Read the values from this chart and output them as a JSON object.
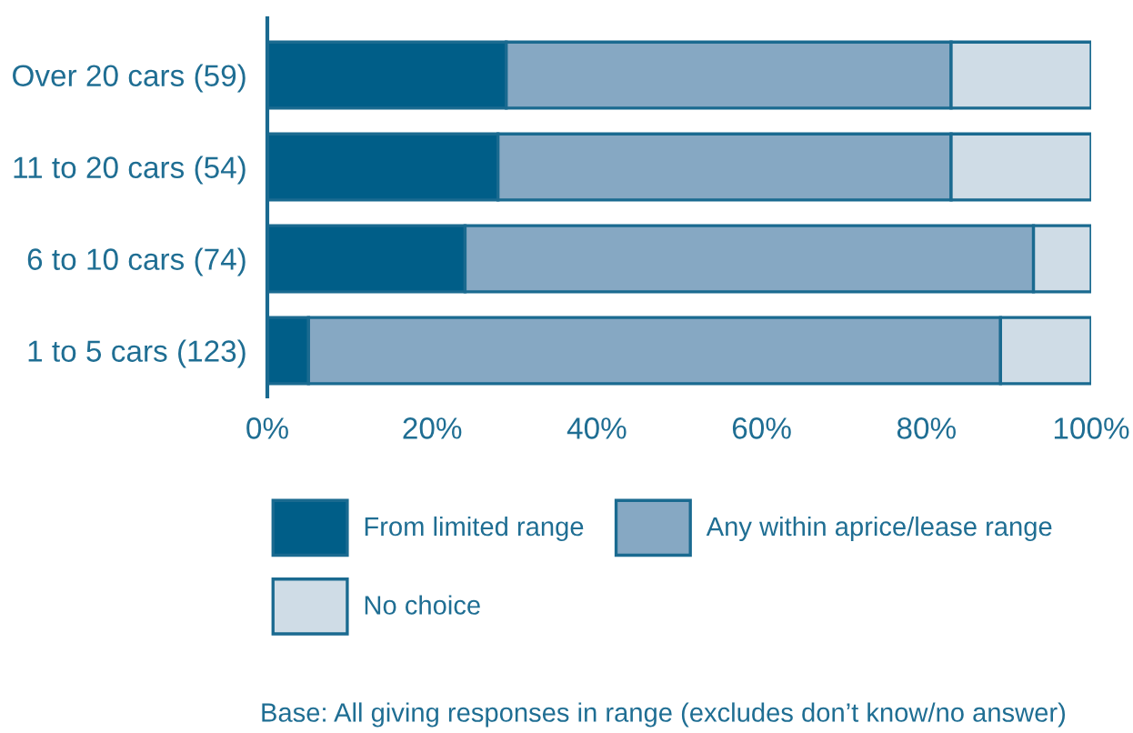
{
  "chart_data": {
    "type": "bar",
    "orientation": "horizontal",
    "stacked": true,
    "categories": [
      "Over 20 cars (59)",
      "11 to 20 cars (54)",
      "6 to 10 cars (74)",
      "1 to 5 cars (123)"
    ],
    "series": [
      {
        "name": "From limited range",
        "color": "#005e88",
        "values": [
          29,
          28,
          24,
          5
        ]
      },
      {
        "name": "Any within aprice/lease range",
        "color": "#86a8c3",
        "values": [
          54,
          55,
          69,
          84
        ]
      },
      {
        "name": "No choice",
        "color": "#cfdce6",
        "values": [
          17,
          17,
          7,
          11
        ]
      }
    ],
    "xlim": [
      0,
      100
    ],
    "xticks": [
      {
        "value": 0,
        "label": "0%"
      },
      {
        "value": 20,
        "label": "20%"
      },
      {
        "value": 40,
        "label": "40%"
      },
      {
        "value": 60,
        "label": "60%"
      },
      {
        "value": 80,
        "label": "80%"
      },
      {
        "value": 100,
        "label": "100%"
      }
    ],
    "grid": false,
    "legend": "bottom",
    "annotations": [
      "Base: All giving responses in range (excludes don’t know/no answer)"
    ]
  }
}
